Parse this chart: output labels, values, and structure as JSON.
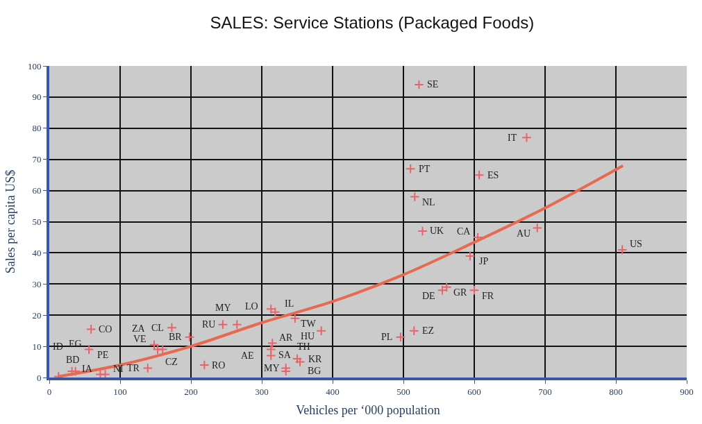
{
  "chart_data": {
    "type": "scatter",
    "title": "SALES: Service Stations (Packaged Foods)",
    "xlabel": "Vehicles per ‘000 population",
    "ylabel": "Sales per capita US$",
    "xlim": [
      0,
      900
    ],
    "xticks": [
      0,
      100,
      200,
      300,
      400,
      500,
      600,
      700,
      800,
      900
    ],
    "ylim": [
      0,
      100
    ],
    "yticks": [
      0,
      10,
      20,
      30,
      40,
      50,
      60,
      70,
      80,
      90,
      100
    ],
    "grid": true,
    "legend": false,
    "marker": "cross",
    "series": [
      {
        "color": "#e8646a",
        "x": [
          522,
          674,
          510,
          607,
          516,
          527,
          605,
          689,
          809,
          594,
          555,
          561,
          600,
          515,
          496,
          313,
          319,
          347,
          384,
          245,
          265,
          315,
          313,
          313,
          350,
          354,
          334,
          334,
          219,
          59,
          56,
          173,
          198,
          148,
          153,
          160,
          139,
          13,
          32,
          37,
          72,
          79
        ],
        "values": [
          94,
          77,
          67,
          65,
          58,
          47,
          45,
          48,
          41,
          39,
          28,
          29,
          28,
          15,
          13,
          22,
          21,
          19,
          15,
          17,
          17,
          11,
          9,
          7,
          6,
          5,
          3,
          2,
          4,
          15.5,
          9,
          16,
          13,
          10.5,
          9,
          9,
          3,
          0.3,
          2,
          2,
          1,
          1
        ]
      },
      {
        "type": "line",
        "color": "#e8694f",
        "marker": "none",
        "x": [
          12,
          100,
          200,
          300,
          400,
          500,
          600,
          700,
          810
        ],
        "values": [
          0.3,
          4,
          10,
          17.6,
          24.4,
          33,
          43.4,
          54.4,
          68
        ]
      }
    ],
    "annotations": [
      {
        "text": "SE",
        "x": 522,
        "y": 94
      },
      {
        "text": "IT",
        "x": 674,
        "y": 77
      },
      {
        "text": "PT",
        "x": 510,
        "y": 67
      },
      {
        "text": "ES",
        "x": 607,
        "y": 65
      },
      {
        "text": "NL",
        "x": 516,
        "y": 58
      },
      {
        "text": "UK",
        "x": 527,
        "y": 47
      },
      {
        "text": "CA",
        "x": 605,
        "y": 45
      },
      {
        "text": "AU",
        "x": 689,
        "y": 48
      },
      {
        "text": "US",
        "x": 809,
        "y": 41
      },
      {
        "text": "JP",
        "x": 594,
        "y": 39
      },
      {
        "text": "DE",
        "x": 555,
        "y": 28
      },
      {
        "text": "GR",
        "x": 561,
        "y": 29
      },
      {
        "text": "FR",
        "x": 600,
        "y": 28
      },
      {
        "text": "EZ",
        "x": 515,
        "y": 15
      },
      {
        "text": "PL",
        "x": 496,
        "y": 13
      },
      {
        "text": "IL",
        "x": 313,
        "y": 22
      },
      {
        "text": "LO",
        "x": 319,
        "y": 21
      },
      {
        "text": "TW",
        "x": 347,
        "y": 19
      },
      {
        "text": "HU",
        "x": 384,
        "y": 15
      },
      {
        "text": "RU",
        "x": 245,
        "y": 17
      },
      {
        "text": "MY",
        "x": 265,
        "y": 17
      },
      {
        "text": "AR",
        "x": 315,
        "y": 11
      },
      {
        "text": "SA",
        "x": 313,
        "y": 9
      },
      {
        "text": "AE",
        "x": 313,
        "y": 7
      },
      {
        "text": "KR",
        "x": 350,
        "y": 6
      },
      {
        "text": "BG",
        "x": 354,
        "y": 5
      },
      {
        "text": "MY",
        "x": 334,
        "y": 3
      },
      {
        "text": "TH",
        "x": 334,
        "y": 2
      },
      {
        "text": "RO",
        "x": 219,
        "y": 4
      },
      {
        "text": "CO",
        "x": 59,
        "y": 15.5
      },
      {
        "text": "PE",
        "x": 56,
        "y": 9
      },
      {
        "text": "CL",
        "x": 173,
        "y": 16
      },
      {
        "text": "BR",
        "x": 198,
        "y": 13
      },
      {
        "text": "VE",
        "x": 148,
        "y": 10.5
      },
      {
        "text": "CZ",
        "x": 153,
        "y": 9
      },
      {
        "text": "ZA",
        "x": 160,
        "y": 9
      },
      {
        "text": "TR",
        "x": 139,
        "y": 3
      },
      {
        "text": "BD",
        "x": 13,
        "y": 0.3
      },
      {
        "text": "ID",
        "x": 32,
        "y": 2
      },
      {
        "text": "EG",
        "x": 37,
        "y": 2
      },
      {
        "text": "NI",
        "x": 72,
        "y": 1
      },
      {
        "text": "IA",
        "x": 79,
        "y": 1
      }
    ]
  }
}
